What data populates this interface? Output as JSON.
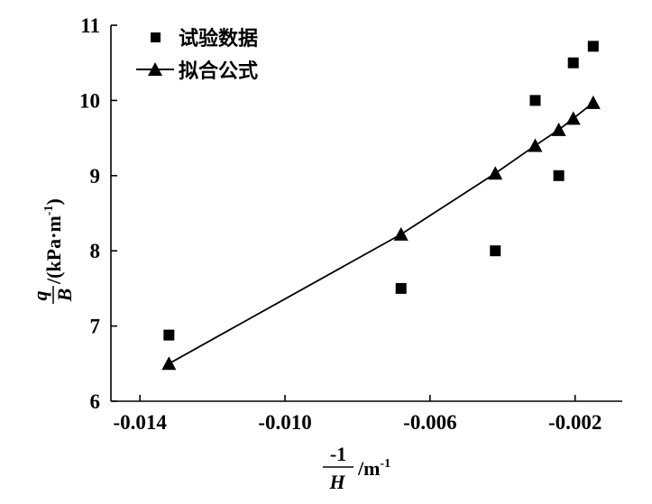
{
  "chart_data": {
    "type": "scatter",
    "x_ticks": [
      "-0.014",
      "-0.010",
      "-0.006",
      "-0.002"
    ],
    "x_tick_values": [
      -0.014,
      -0.01,
      -0.006,
      -0.002
    ],
    "y_ticks": [
      "6",
      "7",
      "8",
      "9",
      "10",
      "11"
    ],
    "y_tick_values": [
      6,
      7,
      8,
      9,
      10,
      11
    ],
    "xlim": [
      -0.0148,
      -0.0007
    ],
    "ylim": [
      6,
      11
    ],
    "grid": false,
    "legend_position": "top-left",
    "xlabel": {
      "numerator": "-1",
      "denominator": "H",
      "unit": "/m",
      "unit_exp": "-1"
    },
    "ylabel": {
      "numerator": "q",
      "denominator": "B",
      "unit": "/(kPa·m",
      "unit_exp": "-1",
      "unit_close": ")"
    },
    "series": [
      {
        "name": "试验数据",
        "marker": "square",
        "line": false,
        "color": "#000000",
        "x": [
          -0.0132,
          -0.0068,
          -0.0042,
          -0.0031,
          -0.00245,
          -0.00205,
          -0.0015
        ],
        "y": [
          6.88,
          7.5,
          8.0,
          10.0,
          9.0,
          10.5,
          10.72
        ]
      },
      {
        "name": "拟合公式",
        "marker": "triangle",
        "line": true,
        "color": "#000000",
        "x": [
          -0.0132,
          -0.0068,
          -0.0042,
          -0.0031,
          -0.00245,
          -0.00205,
          -0.0015
        ],
        "y": [
          6.5,
          8.22,
          9.03,
          9.4,
          9.61,
          9.76,
          9.97
        ]
      }
    ]
  }
}
